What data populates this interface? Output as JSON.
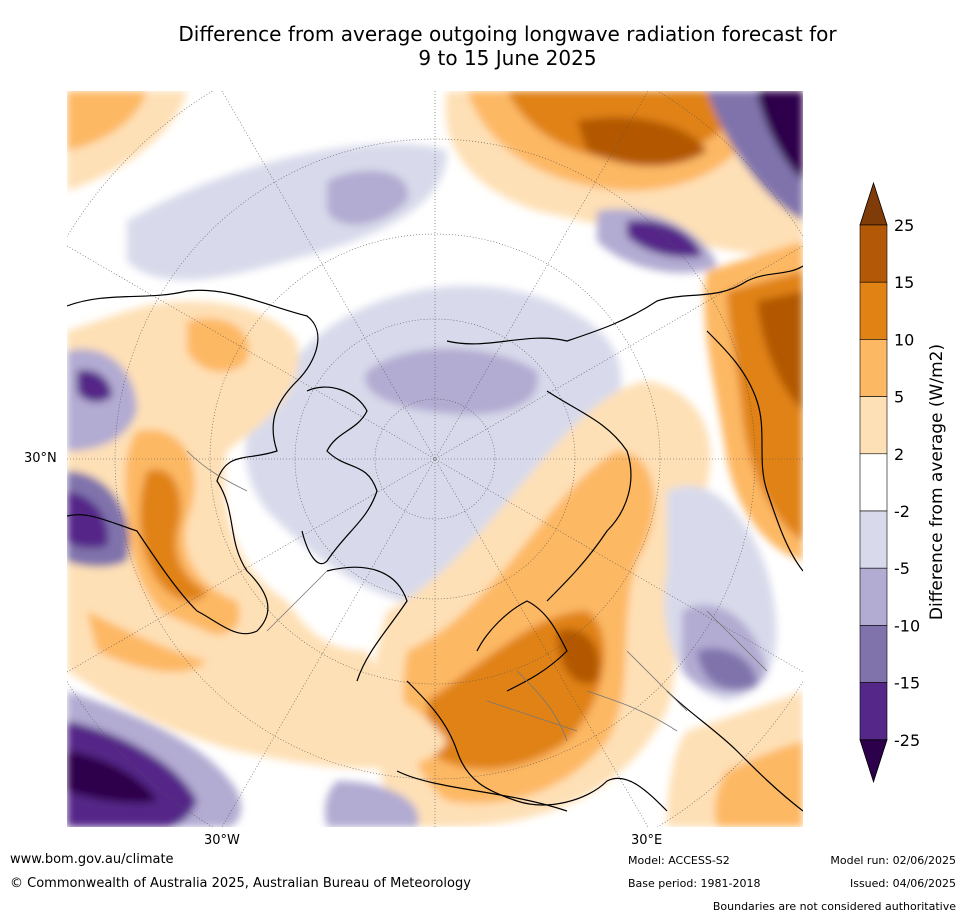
{
  "title_line1": "Difference from average outgoing longwave radiation forecast for",
  "title_line2": "9 to 15 June 2025",
  "chart_data": {
    "type": "heatmap",
    "projection": "north-polar-stereographic",
    "lat_label": "30°N",
    "lon_labels": [
      "30°W",
      "30°E"
    ],
    "colorbar": {
      "label": "Difference from average (W/m2)",
      "ticks": [
        "25",
        "15",
        "10",
        "5",
        "2",
        "-2",
        "-5",
        "-10",
        "-15",
        "-25"
      ],
      "bins": [
        {
          "range": [
            25,
            null
          ],
          "color": "#7f3b08"
        },
        {
          "range": [
            15,
            25
          ],
          "color": "#b35806"
        },
        {
          "range": [
            10,
            15
          ],
          "color": "#e08214"
        },
        {
          "range": [
            5,
            10
          ],
          "color": "#fdb863"
        },
        {
          "range": [
            2,
            5
          ],
          "color": "#fee0b6"
        },
        {
          "range": [
            -2,
            2
          ],
          "color": "#ffffff"
        },
        {
          "range": [
            -5,
            -2
          ],
          "color": "#d8daeb"
        },
        {
          "range": [
            -10,
            -5
          ],
          "color": "#b2abd2"
        },
        {
          "range": [
            -15,
            -10
          ],
          "color": "#8073ac"
        },
        {
          "range": [
            -25,
            -15
          ],
          "color": "#542788"
        },
        {
          "range": [
            null,
            -25
          ],
          "color": "#2d004b"
        }
      ]
    }
  },
  "footer": {
    "website": "www.bom.gov.au/climate",
    "copyright": "© Commonwealth of Australia 2025, Australian Bureau of Meteorology",
    "model": "Model: ACCESS-S2",
    "base_period": "Base period: 1981-2018",
    "model_run": "Model run: 02/06/2025",
    "issued": "Issued: 04/06/2025",
    "disclaimer": "Boundaries are not considered authoritative"
  }
}
